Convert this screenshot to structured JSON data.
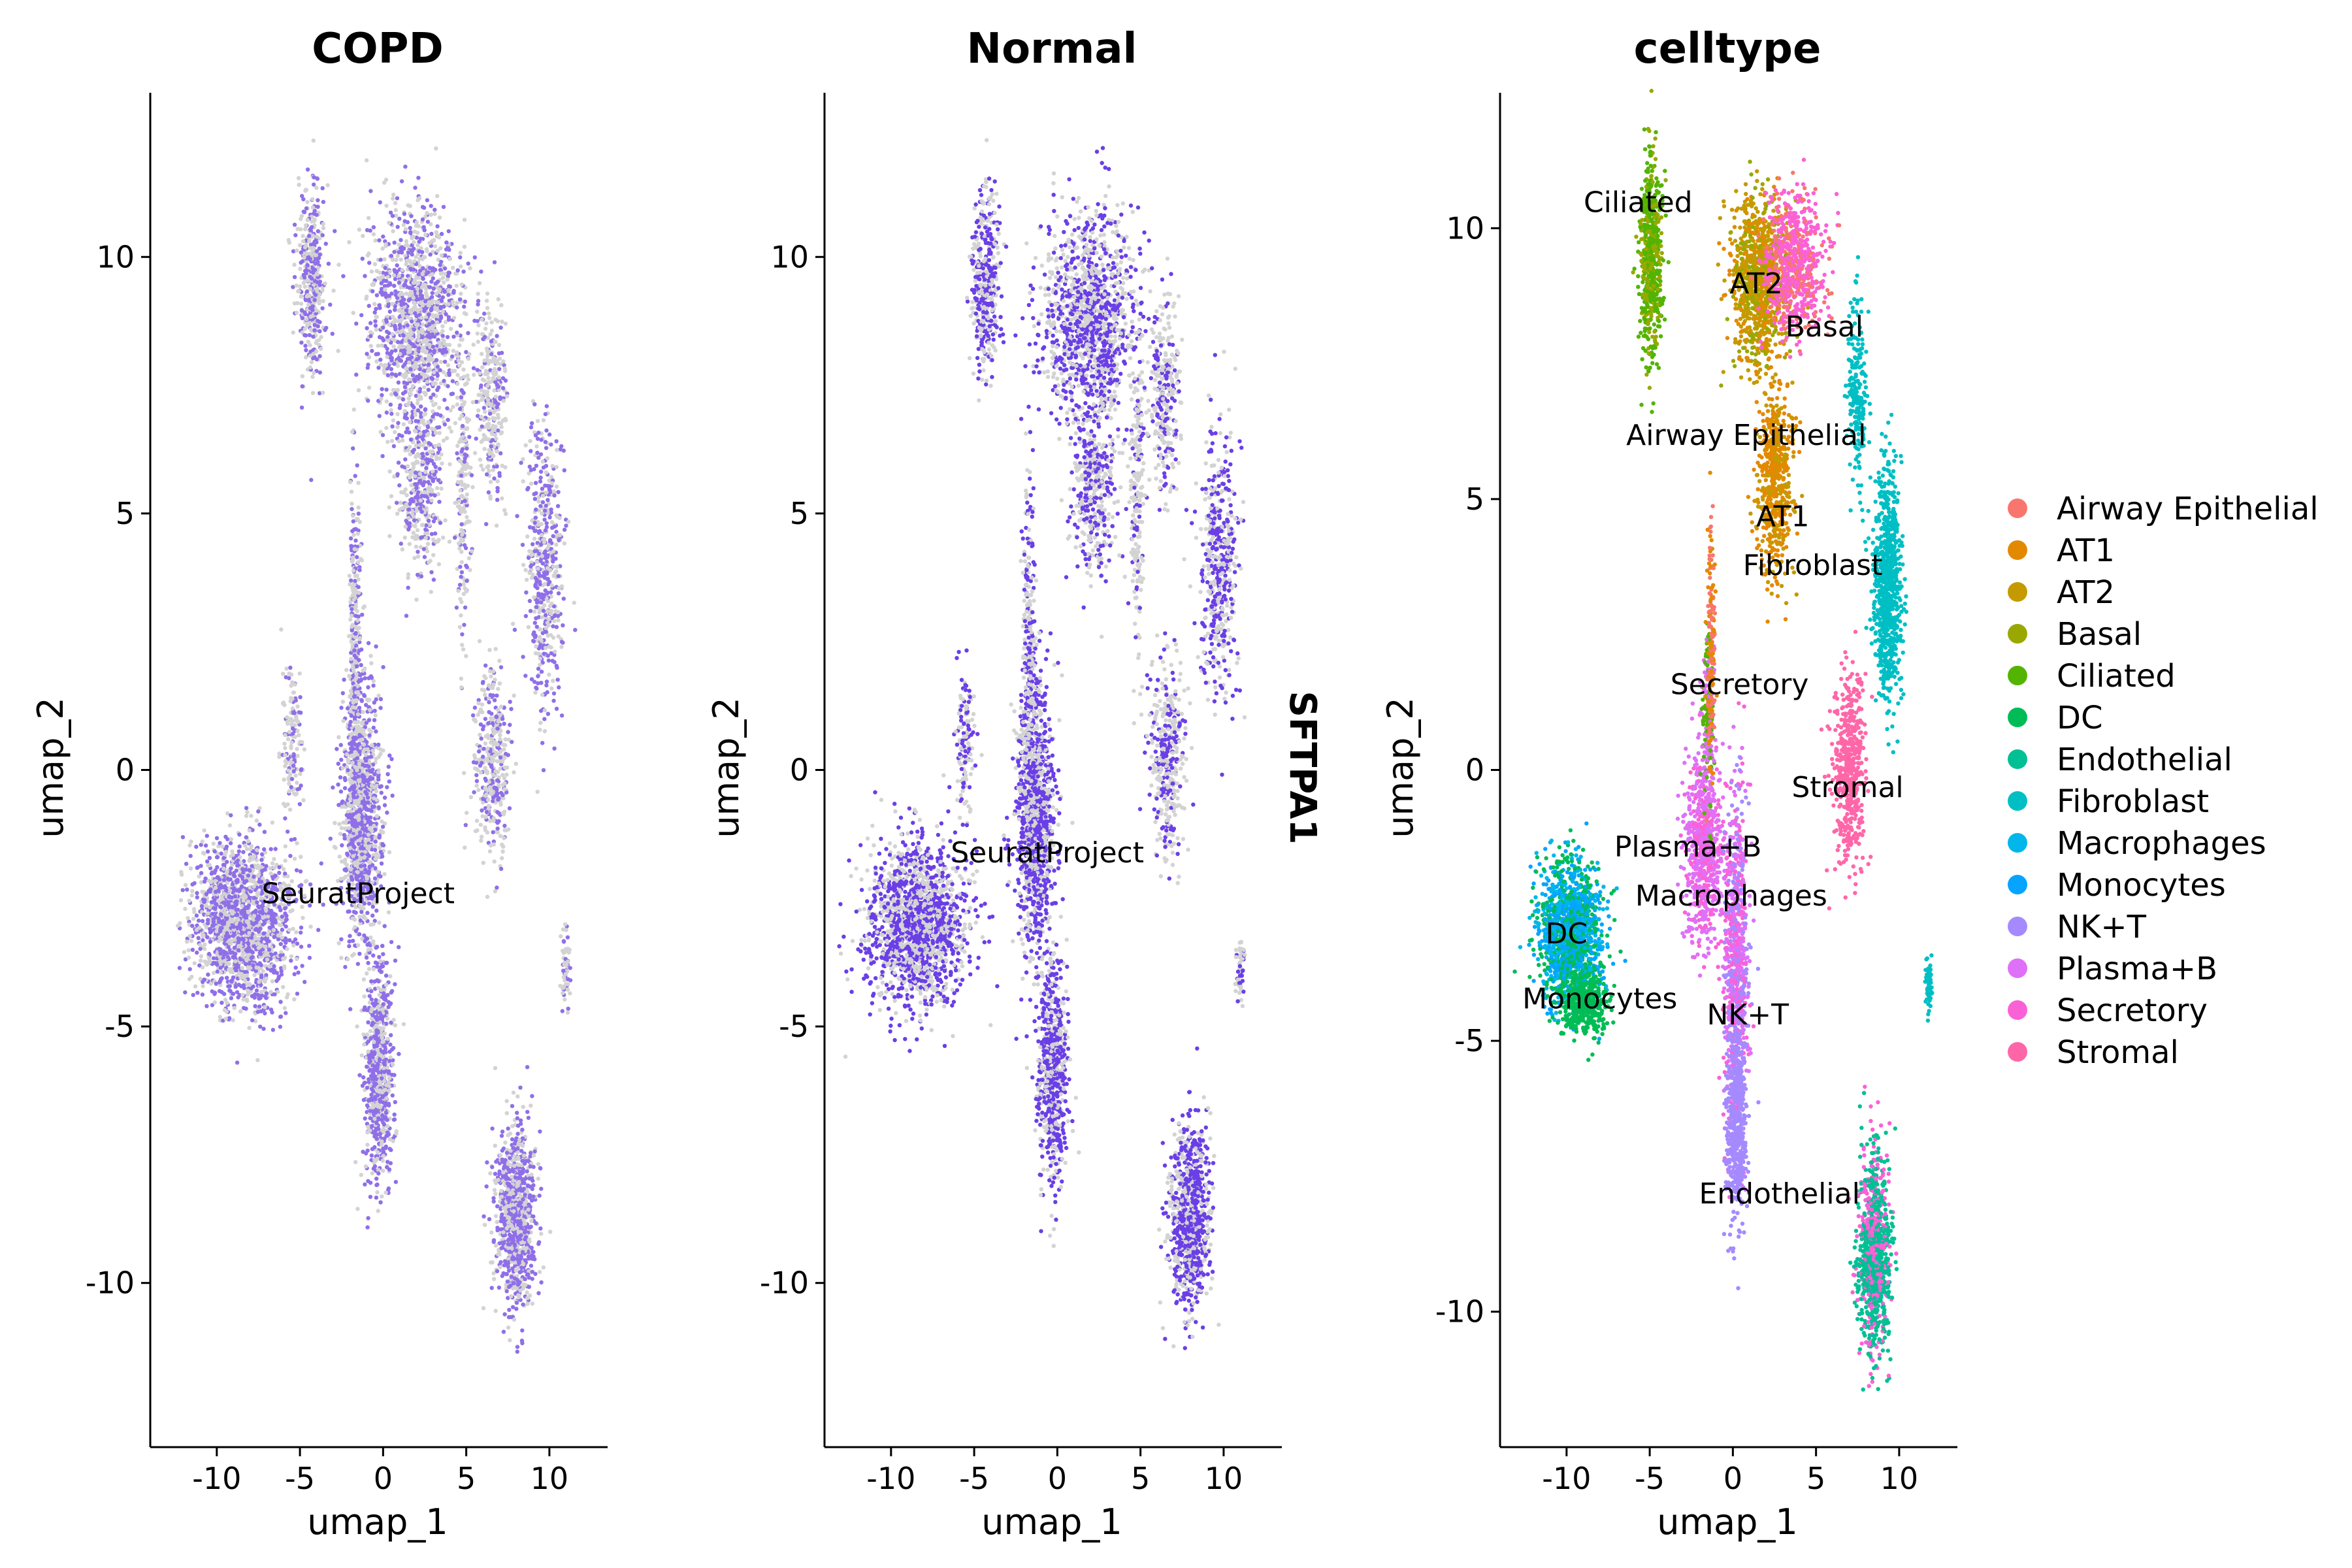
{
  "chart_data": [
    {
      "type": "scatter",
      "title": "COPD",
      "xlabel": "umap_1",
      "ylabel": "umap_2",
      "xlim": [
        -14,
        13.5
      ],
      "ylim": [
        -13.2,
        13.2
      ],
      "xticks": [
        -10,
        -5,
        0,
        5,
        10
      ],
      "yticks": [
        -10,
        -5,
        0,
        5,
        10
      ],
      "xtick_labels": [
        "-10",
        "-5",
        "0",
        "5",
        "10"
      ],
      "ytick_labels": [
        "-10",
        "-5",
        "0",
        "5",
        "10"
      ],
      "grid": false,
      "background_color": "#d3d3d3",
      "expression_color": "#8f6fe8",
      "labels": [
        {
          "text": "SeuratProject",
          "x": -1.5,
          "y": -2.6
        }
      ]
    },
    {
      "type": "scatter",
      "title": "Normal",
      "xlabel": "umap_1",
      "ylabel": "umap_2",
      "xlim": [
        -14,
        13.5
      ],
      "ylim": [
        -13.2,
        13.2
      ],
      "xticks": [
        -10,
        -5,
        0,
        5,
        10
      ],
      "yticks": [
        -10,
        -5,
        0,
        5,
        10
      ],
      "xtick_labels": [
        "-10",
        "-5",
        "0",
        "5",
        "10"
      ],
      "ytick_labels": [
        "-10",
        "-5",
        "0",
        "5",
        "10"
      ],
      "grid": false,
      "background_color": "#d3d3d3",
      "expression_color": "#6a3fe6",
      "side_label": "SFTPA1",
      "labels": [
        {
          "text": "SeuratProject",
          "x": -0.6,
          "y": -1.8
        }
      ]
    },
    {
      "type": "scatter",
      "title": "celltype",
      "xlabel": "umap_1",
      "ylabel": "umap_2",
      "xlim": [
        -14,
        13.5
      ],
      "ylim": [
        -12.5,
        12.5
      ],
      "xticks": [
        -10,
        -5,
        0,
        5,
        10
      ],
      "yticks": [
        -10,
        -5,
        0,
        5,
        10
      ],
      "xtick_labels": [
        "-10",
        "-5",
        "0",
        "5",
        "10"
      ],
      "ytick_labels": [
        "-10",
        "-5",
        "0",
        "5",
        "10"
      ],
      "grid": false,
      "legend": "right",
      "series": [
        {
          "name": "Airway Epithelial",
          "color": "#F8766D"
        },
        {
          "name": "AT1",
          "color": "#E38900"
        },
        {
          "name": "AT2",
          "color": "#C49A00"
        },
        {
          "name": "Basal",
          "color": "#99A800"
        },
        {
          "name": "Ciliated",
          "color": "#53B400"
        },
        {
          "name": "DC",
          "color": "#00BC56"
        },
        {
          "name": "Endothelial",
          "color": "#00C094"
        },
        {
          "name": "Fibroblast",
          "color": "#00BFC4"
        },
        {
          "name": "Macrophages",
          "color": "#00B6EB"
        },
        {
          "name": "Monocytes",
          "color": "#06A4FF"
        },
        {
          "name": "NK+T",
          "color": "#A58AFF"
        },
        {
          "name": "Plasma+B",
          "color": "#DF70F8"
        },
        {
          "name": "Secretory",
          "color": "#FB61D7"
        },
        {
          "name": "Stromal",
          "color": "#FF66A8"
        }
      ],
      "labels": [
        {
          "text": "Ciliated",
          "x": -5.7,
          "y": 10.3
        },
        {
          "text": "AT2",
          "x": 1.4,
          "y": 8.8
        },
        {
          "text": "Basal",
          "x": 5.5,
          "y": 8.0
        },
        {
          "text": "Airway Epithelial",
          "x": 0.8,
          "y": 6.0
        },
        {
          "text": "AT1",
          "x": 3.0,
          "y": 4.5
        },
        {
          "text": "Fibroblast",
          "x": 4.8,
          "y": 3.6
        },
        {
          "text": "Secretory",
          "x": 0.4,
          "y": 1.4
        },
        {
          "text": "Stromal",
          "x": 6.9,
          "y": -0.5
        },
        {
          "text": "Plasma+B",
          "x": -2.7,
          "y": -1.6
        },
        {
          "text": "Macrophages",
          "x": -0.1,
          "y": -2.5
        },
        {
          "text": "DC",
          "x": -10.0,
          "y": -3.2
        },
        {
          "text": "Monocytes",
          "x": -8.0,
          "y": -4.4
        },
        {
          "text": "NK+T",
          "x": 0.9,
          "y": -4.7
        },
        {
          "text": "Endothelial",
          "x": 2.8,
          "y": -8.0
        }
      ]
    }
  ]
}
